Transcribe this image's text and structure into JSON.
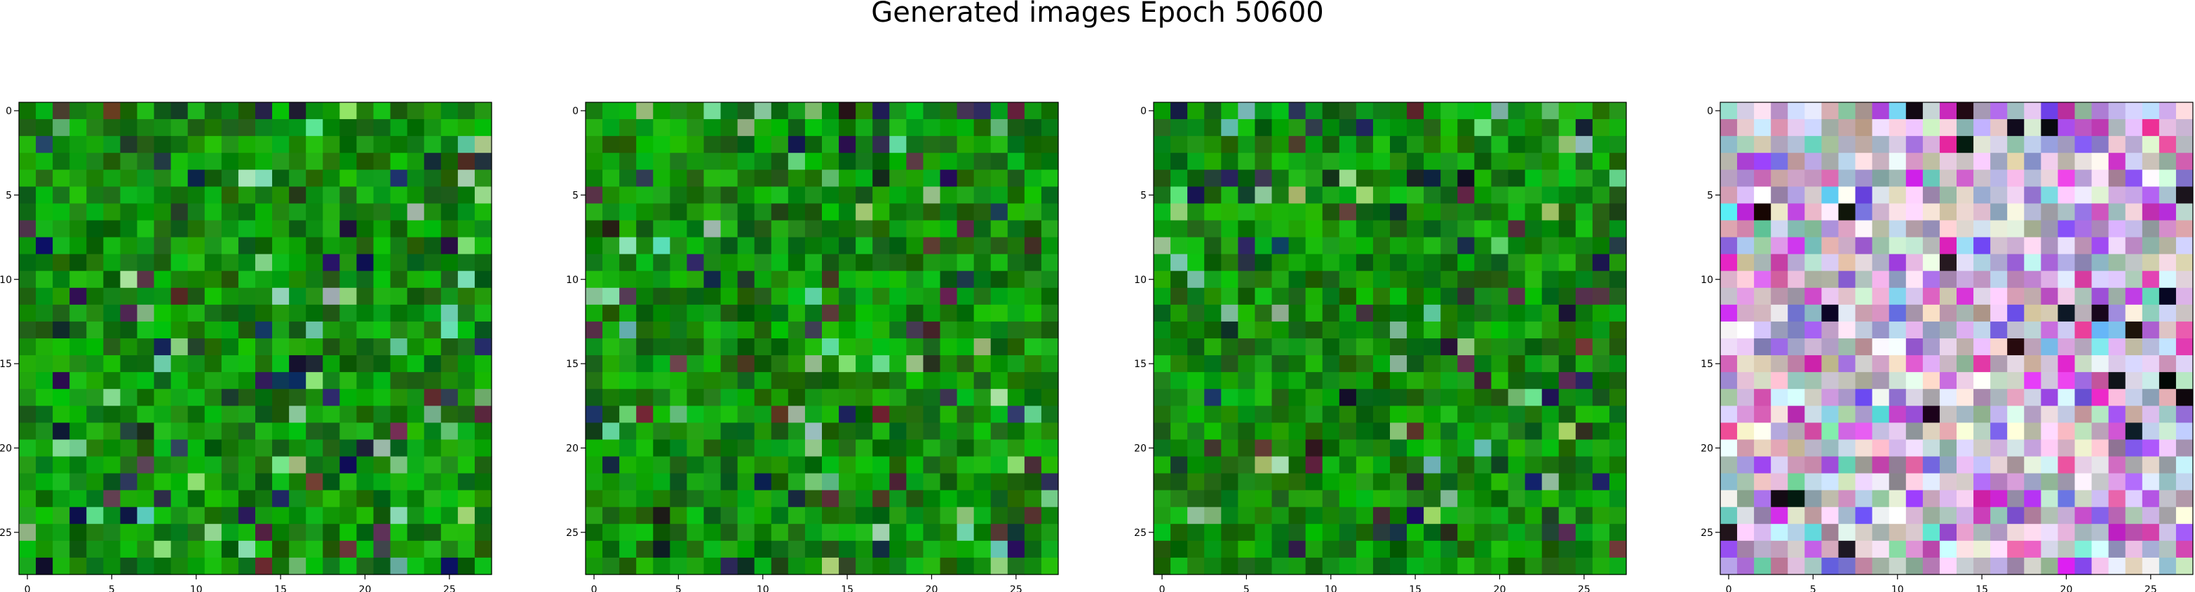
{
  "title": "Generated images Epoch 50600",
  "chart_data": [
    {
      "type": "heatmap",
      "image_size": 28,
      "xticks": [
        0,
        5,
        10,
        15,
        20,
        25
      ],
      "yticks": [
        0,
        5,
        10,
        15,
        20,
        25
      ],
      "xlim": [
        -0.5,
        27.5
      ],
      "ylim": [
        27.5,
        -0.5
      ],
      "palette": "green",
      "seed": 11
    },
    {
      "type": "heatmap",
      "image_size": 28,
      "xticks": [
        0,
        5,
        10,
        15,
        20,
        25
      ],
      "yticks": [
        0,
        5,
        10,
        15,
        20,
        25
      ],
      "xlim": [
        -0.5,
        27.5
      ],
      "ylim": [
        27.5,
        -0.5
      ],
      "palette": "green",
      "seed": 23
    },
    {
      "type": "heatmap",
      "image_size": 28,
      "xticks": [
        0,
        5,
        10,
        15,
        20,
        25
      ],
      "yticks": [
        0,
        5,
        10,
        15,
        20,
        25
      ],
      "xlim": [
        -0.5,
        27.5
      ],
      "ylim": [
        27.5,
        -0.5
      ],
      "palette": "green",
      "seed": 37
    },
    {
      "type": "heatmap",
      "image_size": 28,
      "xticks": [
        0,
        5,
        10,
        15,
        20,
        25
      ],
      "yticks": [
        0,
        5,
        10,
        15,
        20,
        25
      ],
      "xlim": [
        -0.5,
        27.5
      ],
      "ylim": [
        27.5,
        -0.5
      ],
      "palette": "pastel",
      "seed": 51
    }
  ]
}
